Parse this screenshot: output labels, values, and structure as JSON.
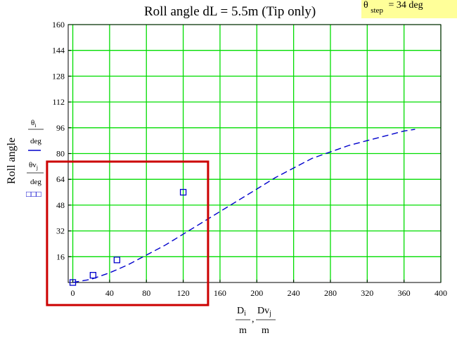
{
  "chart_data": {
    "type": "scatter",
    "title": "Roll angle dL = 5.5m (Tip only)",
    "note": {
      "prefix": "θ",
      "sub": "step",
      "suffix": "= 34 deg",
      "color": "#ffff99"
    },
    "ylabel": "Roll angle",
    "y_series_labels": [
      {
        "num": "θ",
        "num_sub": "i",
        "den": "deg"
      },
      {
        "num": "θv",
        "num_sub": "j",
        "den": "deg"
      }
    ],
    "y_marker_legend": "□□□",
    "x_labels": [
      {
        "num": "D",
        "num_sub": "i",
        "den": "m"
      },
      {
        "num": "Dv",
        "num_sub": "j",
        "den": "m"
      }
    ],
    "x_label_separator": ",",
    "xlim": [
      -5,
      400
    ],
    "ylim": [
      0,
      160
    ],
    "xticks": [
      0,
      40,
      80,
      120,
      160,
      200,
      240,
      280,
      320,
      360,
      400
    ],
    "yticks": [
      16,
      32,
      48,
      64,
      80,
      96,
      112,
      128,
      144,
      160
    ],
    "grid": true,
    "grid_color": "#00dd00",
    "series": [
      {
        "style": "dash",
        "color": "#0000cc",
        "x": [
          0,
          20,
          40,
          60,
          80,
          100,
          120,
          140,
          160,
          180,
          200,
          220,
          240,
          260,
          280,
          300,
          320,
          340,
          360,
          372
        ],
        "y": [
          0,
          2,
          6,
          11,
          17,
          23,
          30,
          37,
          44,
          51,
          58,
          65,
          71,
          77,
          81,
          85,
          88,
          91,
          94,
          95
        ]
      },
      {
        "style": "square",
        "color": "#0000cc",
        "x": [
          0,
          22,
          48,
          120
        ],
        "y": [
          0,
          4.5,
          14,
          56
        ]
      }
    ],
    "highlight_box": {
      "x0": -28,
      "x1": 147,
      "y0": -14,
      "y1": 75,
      "color": "#cc0000"
    }
  }
}
